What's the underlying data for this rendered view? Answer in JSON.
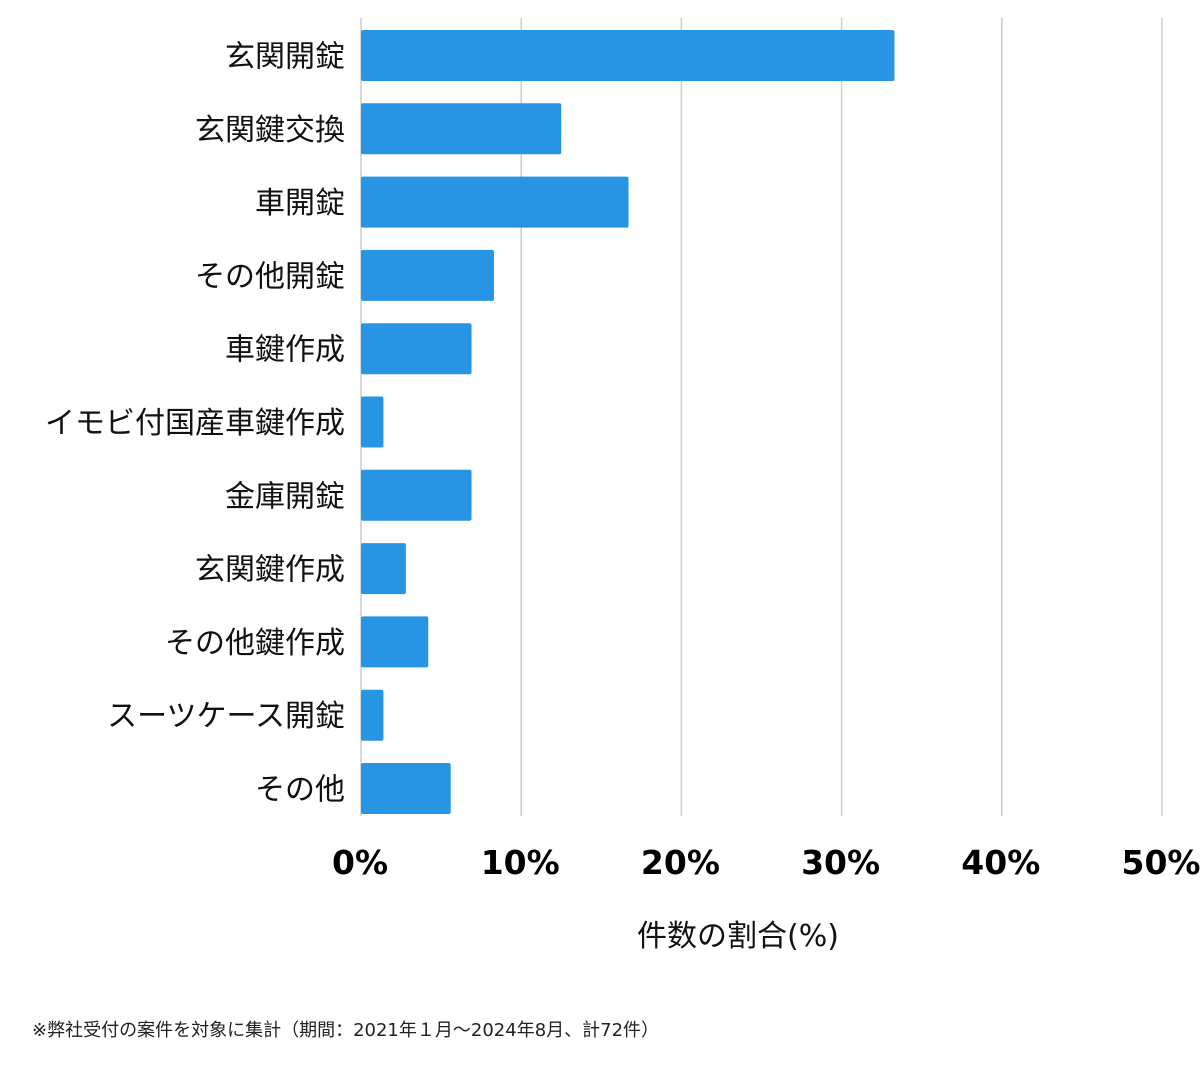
{
  "chart_data": {
    "type": "bar",
    "orientation": "horizontal",
    "categories": [
      "玄関開錠",
      "玄関鍵交換",
      "車開錠",
      "その他開錠",
      "車鍵作成",
      "イモビ付国産車鍵作成",
      "金庫開錠",
      "玄関鍵作成",
      "その他鍵作成",
      "スーツケース開錠",
      "その他"
    ],
    "values": [
      33.3,
      12.5,
      16.7,
      8.3,
      6.9,
      1.4,
      6.9,
      2.8,
      4.2,
      1.4,
      5.6
    ],
    "xlim": [
      0,
      50
    ],
    "xticks": [
      "0%",
      "10%",
      "20%",
      "30%",
      "40%",
      "50%"
    ],
    "xlabel": "件数の割合(%)",
    "ylabel": "",
    "grid": "vertical",
    "bar_color": "#2894e4",
    "grid_color": "#cccccc",
    "footnote": "※弊社受付の案件を対象に集計（期間：2021年１月～2024年8月、計72件）"
  }
}
